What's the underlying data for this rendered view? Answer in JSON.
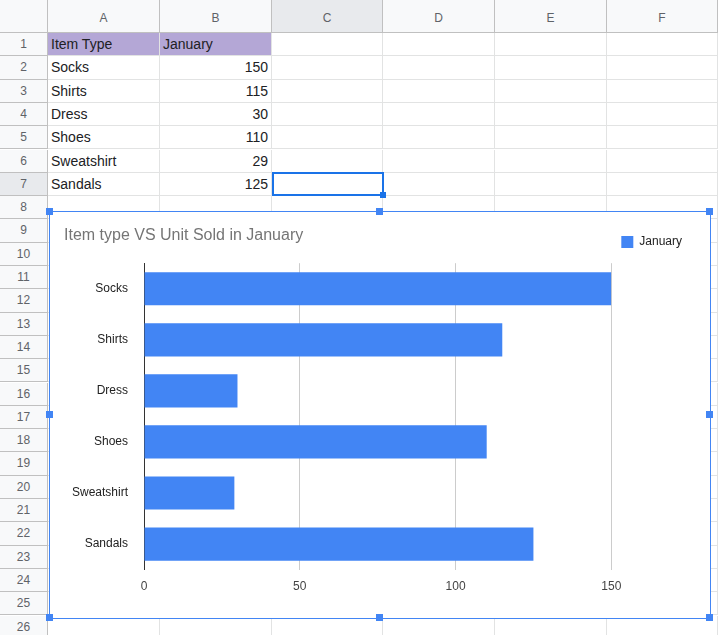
{
  "sheet": {
    "columns": [
      "A",
      "B",
      "C",
      "D",
      "E",
      "F"
    ],
    "rows": [
      1,
      2,
      3,
      4,
      5,
      6,
      7,
      8,
      9,
      10,
      11,
      12,
      13,
      14,
      15,
      16,
      17,
      18,
      19,
      20,
      21,
      22,
      23,
      24,
      25,
      26
    ],
    "cells": [
      [
        "Item Type",
        "January"
      ],
      [
        "Socks",
        150
      ],
      [
        "Shirts",
        115
      ],
      [
        "Dress",
        30
      ],
      [
        "Shoes",
        110
      ],
      [
        "Sweatshirt",
        29
      ],
      [
        "Sandals",
        125
      ]
    ]
  },
  "chart_data": {
    "type": "bar",
    "orientation": "horizontal",
    "title": "Item type VS Unit Sold in January",
    "categories": [
      "Socks",
      "Shirts",
      "Dress",
      "Shoes",
      "Sweatshirt",
      "Sandals"
    ],
    "series": [
      {
        "name": "January",
        "color": "#4285f4",
        "values": [
          150,
          115,
          30,
          110,
          29,
          125
        ]
      }
    ],
    "xlim": [
      0,
      150
    ],
    "xticks": [
      0,
      50,
      100,
      150
    ],
    "grid": true,
    "legend": "right"
  }
}
